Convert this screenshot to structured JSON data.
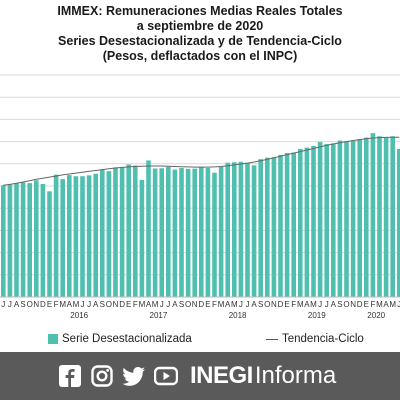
{
  "header": {
    "title_lines": [
      "IMMEX: Remuneraciones Medias Reales Totales",
      "a septiembre de 2020",
      "Series Desestacionalizada y de Tendencia-Ciclo",
      "(Pesos, deflactados con el INPC)"
    ]
  },
  "chart_data": {
    "type": "bar",
    "title": "IMMEX: Remuneraciones Medias Reales Totales a septiembre de 2020 Series Desestacionalizada y de Tendencia-Ciclo (Pesos, deflactados con el INPC)",
    "month_labels": [
      "J",
      "J",
      "A",
      "S",
      "O",
      "N",
      "D",
      "E",
      "F",
      "M",
      "A",
      "M",
      "J",
      "J",
      "A",
      "S",
      "O",
      "N",
      "D",
      "E",
      "F",
      "M",
      "A",
      "M",
      "J",
      "J",
      "A",
      "S",
      "O",
      "N",
      "D",
      "E",
      "F",
      "M",
      "A",
      "M",
      "J",
      "J",
      "A",
      "S",
      "O",
      "N",
      "D",
      "E",
      "F",
      "M",
      "A",
      "M",
      "J",
      "J",
      "A",
      "S",
      "O",
      "N",
      "D",
      "E",
      "F",
      "M",
      "A",
      "M",
      "J"
    ],
    "year_labels": [
      {
        "label": "2016",
        "center_index": 11.5
      },
      {
        "label": "2017",
        "center_index": 23.5
      },
      {
        "label": "2018",
        "center_index": 35.5
      },
      {
        "label": "2019",
        "center_index": 47.5
      },
      {
        "label": "2020",
        "center_index": 56.5
      }
    ],
    "ylim": [
      0,
      100
    ],
    "series": [
      {
        "name": "Serie Desestacionalizada",
        "type": "bar",
        "color": "#4fc0b0",
        "values": [
          50.3,
          50.6,
          51.3,
          51.6,
          51.3,
          52.6,
          50.9,
          47.6,
          55.1,
          53.1,
          54.9,
          54.4,
          54.4,
          54.8,
          55.5,
          57.2,
          56.7,
          58.4,
          58.5,
          59.7,
          59.2,
          52.7,
          61.5,
          57.9,
          58.0,
          58.6,
          57.4,
          58.1,
          57.7,
          57.8,
          58.5,
          58.1,
          56.0,
          58.6,
          60.5,
          60.7,
          60.9,
          60.5,
          59.3,
          62.1,
          62.8,
          63.0,
          64.0,
          64.9,
          65.1,
          66.7,
          67.3,
          68.1,
          69.8,
          68.9,
          69.2,
          70.5,
          70.2,
          70.4,
          71.1,
          71.8,
          73.8,
          72.4,
          71.7,
          72.4,
          66.7
        ]
      },
      {
        "name": "Tendencia-Ciclo",
        "type": "line",
        "color": "#666666",
        "values": [
          50.3,
          50.7,
          51.2,
          51.8,
          52.4,
          53.0,
          53.5,
          54.0,
          54.5,
          55.0,
          55.4,
          55.8,
          56.2,
          56.6,
          57.0,
          57.4,
          57.8,
          58.1,
          58.4,
          58.6,
          58.8,
          58.9,
          59.0,
          59.0,
          59.0,
          58.9,
          58.8,
          58.7,
          58.6,
          58.5,
          58.5,
          58.5,
          58.6,
          58.8,
          59.1,
          59.5,
          59.9,
          60.3,
          60.8,
          61.4,
          62.0,
          62.7,
          63.4,
          64.1,
          64.8,
          65.5,
          66.2,
          66.9,
          67.6,
          68.3,
          68.9,
          69.5,
          70.0,
          70.5,
          70.9,
          71.3,
          71.6,
          71.8,
          71.9,
          72.0,
          72.0
        ]
      }
    ]
  },
  "legend": {
    "series_bar_label": "Serie Desestacionalizada",
    "series_line_label": "Tendencia-Ciclo"
  },
  "footer": {
    "icons": [
      "facebook-icon",
      "instagram-icon",
      "twitter-icon",
      "youtube-icon"
    ],
    "brand_bold": "INEGI",
    "brand_light": "Informa",
    "bg_color": "#5a5a5a"
  }
}
